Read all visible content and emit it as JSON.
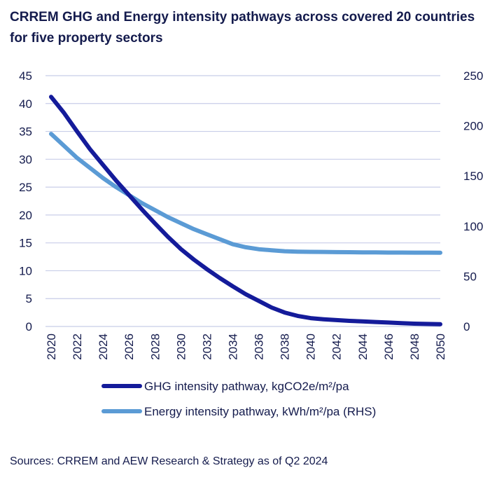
{
  "chart_data": {
    "type": "line",
    "title": "CRREM GHG and Energy intensity pathways across covered 20 countries for five property sectors",
    "source": "Sources: CRREM and AEW Research & Strategy as of Q2 2024",
    "x": [
      2020,
      2021,
      2022,
      2023,
      2024,
      2025,
      2026,
      2027,
      2028,
      2029,
      2030,
      2031,
      2032,
      2033,
      2034,
      2035,
      2036,
      2037,
      2038,
      2039,
      2040,
      2041,
      2042,
      2043,
      2044,
      2045,
      2046,
      2047,
      2048,
      2049,
      2050
    ],
    "x_ticks": [
      "2020",
      "2022",
      "2024",
      "2026",
      "2028",
      "2030",
      "2032",
      "2034",
      "2036",
      "2038",
      "2040",
      "2042",
      "2044",
      "2046",
      "2048",
      "2050"
    ],
    "y_left_ticks": [
      "0",
      "5",
      "10",
      "15",
      "20",
      "25",
      "30",
      "35",
      "40",
      "45"
    ],
    "y_right_ticks": [
      "0",
      "50",
      "100",
      "150",
      "200",
      "250"
    ],
    "ylim_left": [
      0,
      45
    ],
    "ylim_right": [
      0,
      250
    ],
    "grid": true,
    "legend_position": "bottom",
    "series": [
      {
        "name": "GHG intensity pathway, kgCO2e/m²/pa",
        "axis": "left",
        "color": "#141b9a",
        "values": [
          41.2,
          38.3,
          35.0,
          31.8,
          29.0,
          26.2,
          23.6,
          21.0,
          18.5,
          16.1,
          13.9,
          12.0,
          10.3,
          8.7,
          7.2,
          5.8,
          4.6,
          3.4,
          2.5,
          1.9,
          1.5,
          1.3,
          1.15,
          1.0,
          0.9,
          0.8,
          0.7,
          0.6,
          0.5,
          0.45,
          0.4
        ]
      },
      {
        "name": "Energy intensity pathway, kWh/m²/pa (RHS)",
        "axis": "right",
        "color": "#5b9bd5",
        "values": [
          192,
          180,
          168,
          158,
          148,
          139,
          131,
          123,
          116,
          109,
          103,
          97,
          92,
          87,
          82,
          79,
          77,
          76,
          75,
          74.6,
          74.4,
          74.3,
          74.1,
          74.0,
          73.9,
          73.8,
          73.7,
          73.7,
          73.6,
          73.6,
          73.5
        ]
      }
    ]
  }
}
